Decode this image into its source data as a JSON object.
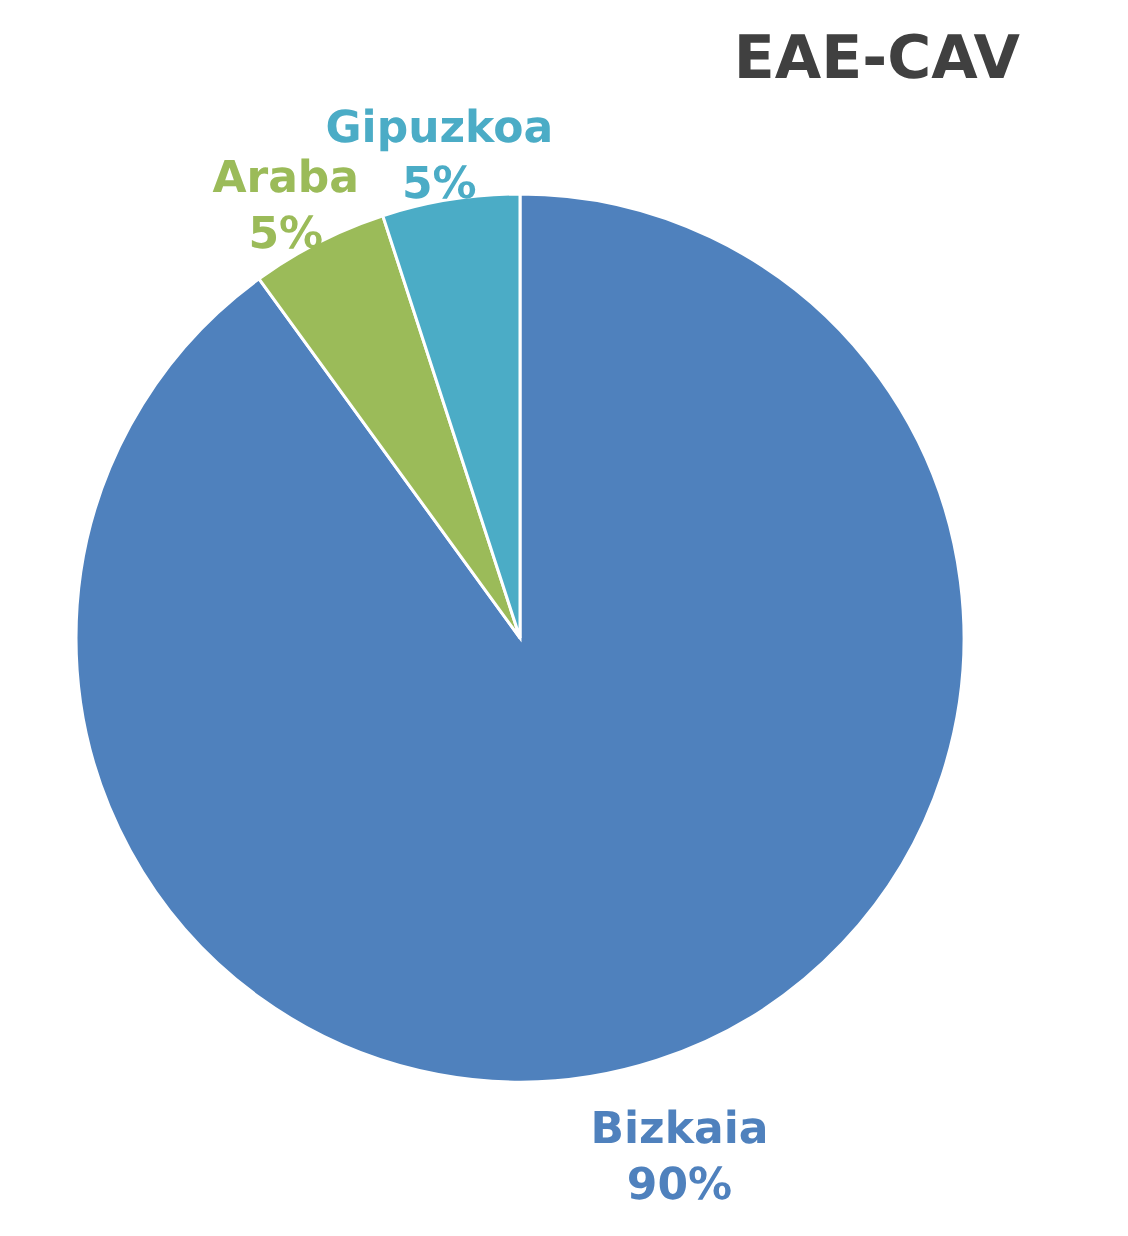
{
  "chart_data": {
    "type": "pie",
    "title": "EAE-CAV",
    "categories": [
      "Bizkaia",
      "Araba",
      "Gipuzkoa"
    ],
    "values": [
      90,
      5,
      5
    ],
    "colors": [
      "#4f81bd",
      "#9bbb59",
      "#4bacc6"
    ],
    "value_labels": [
      "90%",
      "5%",
      "5%"
    ],
    "legend": false
  }
}
